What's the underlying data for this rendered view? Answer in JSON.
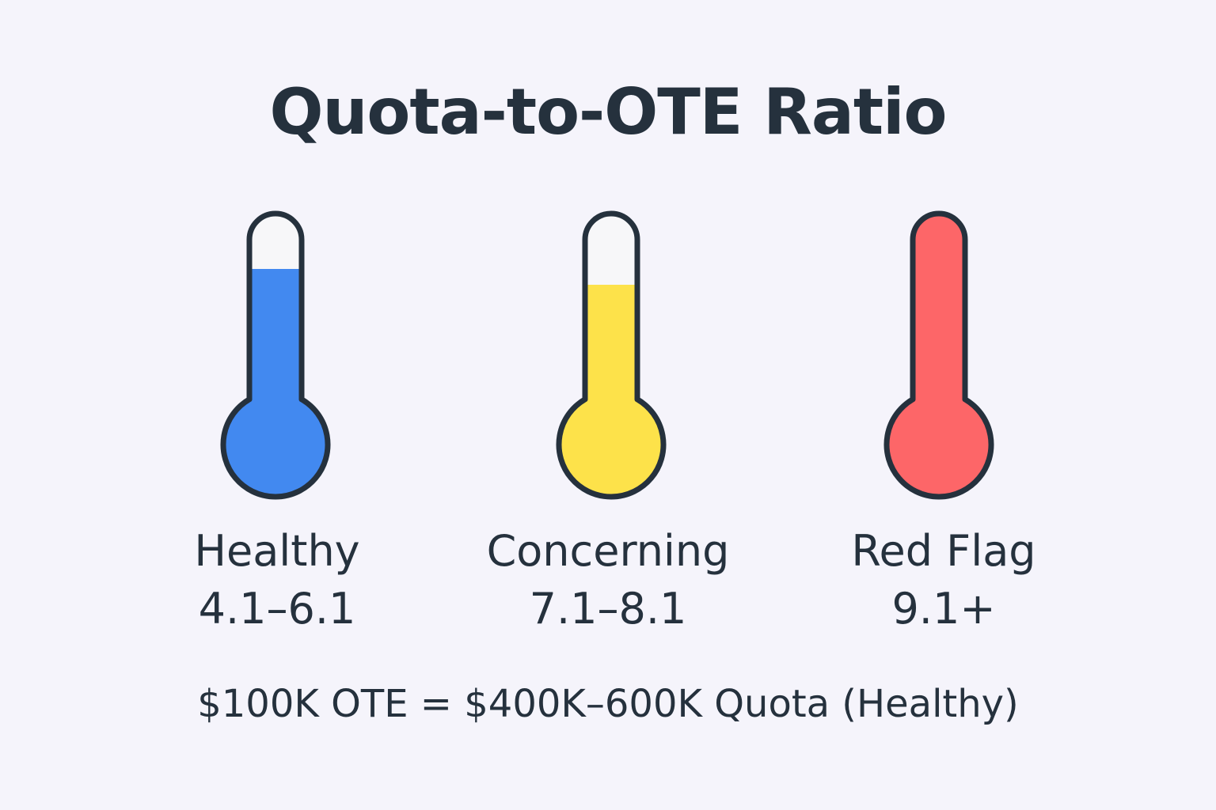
{
  "title": "Quota-to-OTE Ratio",
  "levels": [
    {
      "name": "Healthy",
      "range": "4.1–6.1",
      "color": "#4289f0",
      "fill_fraction": 0.72,
      "icon": "thermometer-icon"
    },
    {
      "name": "Concerning",
      "range": "7.1–8.1",
      "color": "#fde24a",
      "fill_fraction": 0.64,
      "icon": "thermometer-icon"
    },
    {
      "name": "Red Flag",
      "range": "9.1+",
      "color": "#fd6668",
      "fill_fraction": 1.0,
      "icon": "thermometer-icon"
    }
  ],
  "footer": "$100K OTE = $400K–600K Quota (Healthy)",
  "colors": {
    "background": "#f5f4fb",
    "text": "#25313d",
    "outline": "#25313d",
    "empty_tube": "#f7f7f9"
  }
}
